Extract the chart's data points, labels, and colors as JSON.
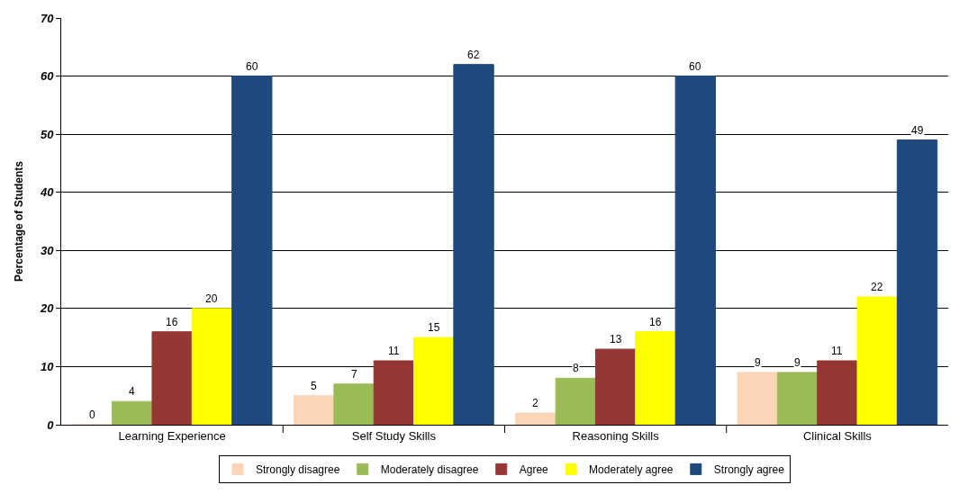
{
  "chart_data": {
    "type": "bar",
    "ylabel": "Percentage of Students",
    "categories": [
      "Learning Experience",
      "Self Study Skills",
      "Reasoning Skills",
      "Clinical Skills"
    ],
    "series": [
      {
        "name": "Strongly disagree",
        "color": "#fbd5b5",
        "values": [
          0,
          5,
          2,
          9
        ]
      },
      {
        "name": "Moderately disagree",
        "color": "#9bbb59",
        "values": [
          4,
          7,
          8,
          9
        ]
      },
      {
        "name": "Agree",
        "color": "#953735",
        "values": [
          16,
          11,
          13,
          11
        ]
      },
      {
        "name": "Moderately agree",
        "color": "#ffff00",
        "values": [
          20,
          15,
          16,
          22
        ]
      },
      {
        "name": "Strongly agree",
        "color": "#1f497d",
        "values": [
          60,
          62,
          60,
          49
        ]
      }
    ],
    "ylim": [
      0,
      70
    ],
    "yticks": [
      0,
      10,
      20,
      30,
      40,
      50,
      60,
      70
    ],
    "grid": "y",
    "legend": "bottom",
    "data_labels": true
  }
}
